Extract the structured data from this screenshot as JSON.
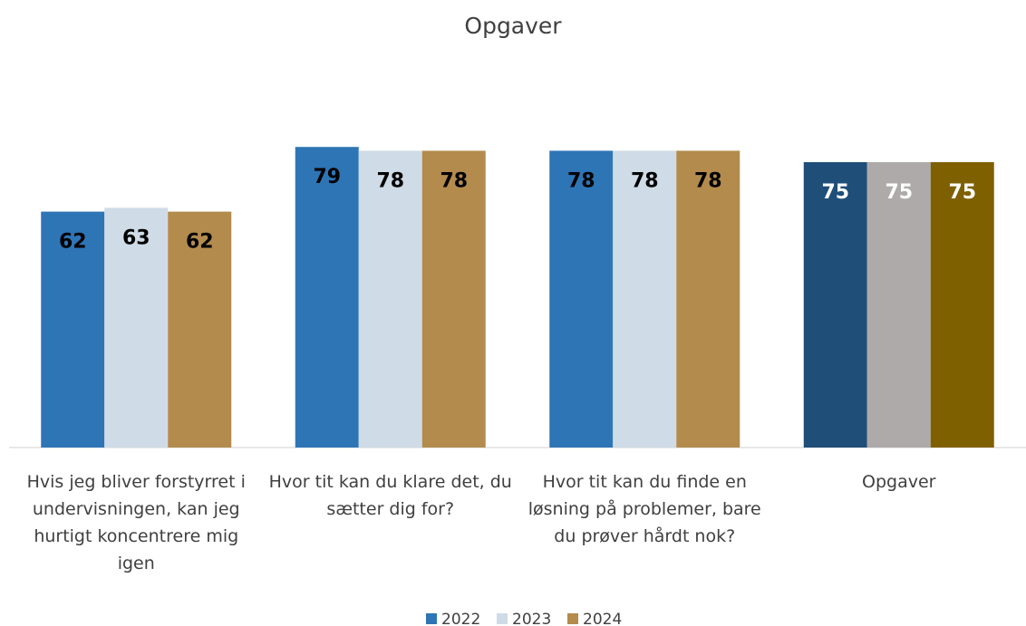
{
  "chart_data": {
    "type": "bar",
    "title": "Opgaver",
    "categories": [
      "Hvis jeg bliver forstyrret i undervisningen, kan jeg hurtigt koncentrere mig igen",
      "Hvor tit kan du klare det, du sætter dig for?",
      "Hvor tit kan du finde en løsning på problemer, bare du prøver hårdt nok?",
      "Opgaver"
    ],
    "series": [
      {
        "name": "2022",
        "color": "#2e75b6",
        "colors": [
          "#2e75b6",
          "#2e75b6",
          "#2e75b6",
          "#1f4e79"
        ],
        "values": [
          62,
          79,
          78,
          75
        ]
      },
      {
        "name": "2023",
        "color": "#cfdbe6",
        "colors": [
          "#cfdbe6",
          "#cfdbe6",
          "#cfdbe6",
          "#aeaaaa"
        ],
        "values": [
          63,
          78,
          78,
          75
        ]
      },
      {
        "name": "2024",
        "color": "#b38b4d",
        "colors": [
          "#b38b4d",
          "#b38b4d",
          "#b38b4d",
          "#7f6000"
        ],
        "values": [
          62,
          78,
          78,
          75
        ]
      }
    ],
    "ylim": [
      0,
      100
    ],
    "grid": false,
    "legend": "bottom"
  }
}
